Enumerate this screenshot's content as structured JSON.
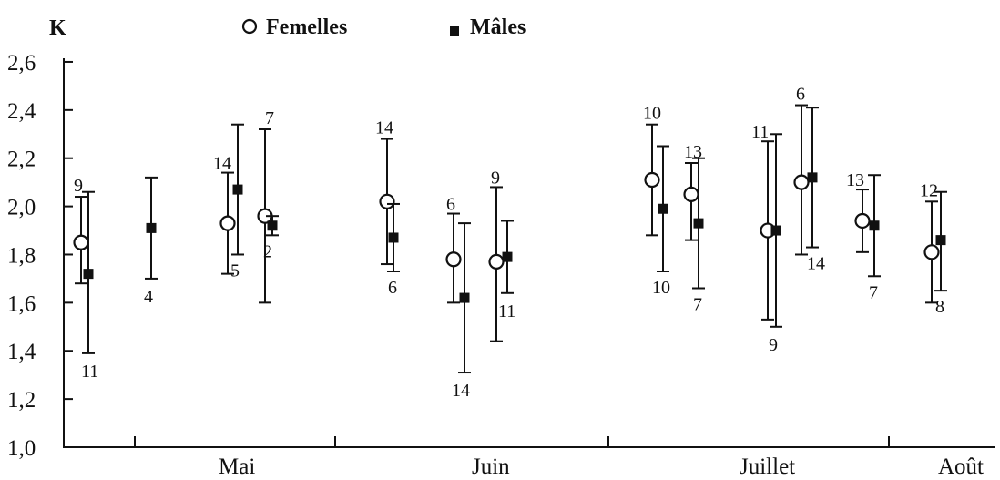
{
  "chart_data": {
    "type": "scatter",
    "title": "",
    "ylabel": "K",
    "xlabel": "",
    "ylim": [
      1.0,
      2.6
    ],
    "yticks": [
      "1,0",
      "1,2",
      "1,4",
      "1,6",
      "1,8",
      "2,0",
      "2,2",
      "2,4",
      "2,6"
    ],
    "months": [
      "Mai",
      "Juin",
      "Juillet",
      "Août"
    ],
    "legend": {
      "position": "top",
      "females_label": "Femelles",
      "males_label": "Mâles"
    },
    "grid": false,
    "series": [
      {
        "name": "Femelles",
        "marker": "open-circle",
        "points": [
          {
            "month": "Mai",
            "mean": 1.85,
            "low": 1.68,
            "high": 2.04,
            "n": "9"
          },
          {
            "month": "Mai",
            "mean": 1.93,
            "low": 1.72,
            "high": 2.14,
            "n": "14"
          },
          {
            "month": "Mai",
            "mean": 1.96,
            "low": 1.6,
            "high": 2.32,
            "n": "7"
          },
          {
            "month": "Juin",
            "mean": 2.02,
            "low": 1.76,
            "high": 2.28,
            "n": "14"
          },
          {
            "month": "Juin",
            "mean": 1.78,
            "low": 1.6,
            "high": 1.97,
            "n": "6"
          },
          {
            "month": "Juin",
            "mean": 1.77,
            "low": 1.44,
            "high": 2.08,
            "n": "9"
          },
          {
            "month": "Juillet",
            "mean": 2.11,
            "low": 1.88,
            "high": 2.34,
            "n": "10"
          },
          {
            "month": "Juillet",
            "mean": 2.05,
            "low": 1.86,
            "high": 2.18,
            "n": "13"
          },
          {
            "month": "Juillet",
            "mean": 1.9,
            "low": 1.53,
            "high": 2.27,
            "n": "11"
          },
          {
            "month": "Juillet",
            "mean": 2.1,
            "low": 1.8,
            "high": 2.42,
            "n": "6"
          },
          {
            "month": "Juillet",
            "mean": 1.94,
            "low": 1.81,
            "high": 2.07,
            "n": "13"
          },
          {
            "month": "Août",
            "mean": 1.81,
            "low": 1.6,
            "high": 2.02,
            "n": "12"
          }
        ]
      },
      {
        "name": "Mâles",
        "marker": "filled-square",
        "points": [
          {
            "month": "Mai",
            "mean": 1.72,
            "low": 1.39,
            "high": 2.06,
            "n": "11"
          },
          {
            "month": "Mai",
            "mean": 1.91,
            "low": 1.7,
            "high": 2.12,
            "n": "4"
          },
          {
            "month": "Mai",
            "mean": 2.07,
            "low": 1.8,
            "high": 2.34,
            "n": "5"
          },
          {
            "month": "Mai",
            "mean": 1.92,
            "low": 1.88,
            "high": 1.96,
            "n": "2"
          },
          {
            "month": "Juin",
            "mean": 1.87,
            "low": 1.73,
            "high": 2.01,
            "n": "6"
          },
          {
            "month": "Juin",
            "mean": 1.62,
            "low": 1.31,
            "high": 1.93,
            "n": "14"
          },
          {
            "month": "Juin",
            "mean": 1.79,
            "low": 1.64,
            "high": 1.94,
            "n": "11"
          },
          {
            "month": "Juillet",
            "mean": 1.99,
            "low": 1.73,
            "high": 2.25,
            "n": "10"
          },
          {
            "month": "Juillet",
            "mean": 1.93,
            "low": 1.66,
            "high": 2.2,
            "n": "7"
          },
          {
            "month": "Juillet",
            "mean": 1.9,
            "low": 1.5,
            "high": 2.3,
            "n": "9"
          },
          {
            "month": "Juillet",
            "mean": 2.12,
            "low": 1.83,
            "high": 2.41,
            "n": "14"
          },
          {
            "month": "Juillet",
            "mean": 1.92,
            "low": 1.71,
            "high": 2.13,
            "n": "7"
          },
          {
            "month": "Août",
            "mean": 1.86,
            "low": 1.65,
            "high": 2.06,
            "n": "8"
          }
        ]
      }
    ]
  }
}
